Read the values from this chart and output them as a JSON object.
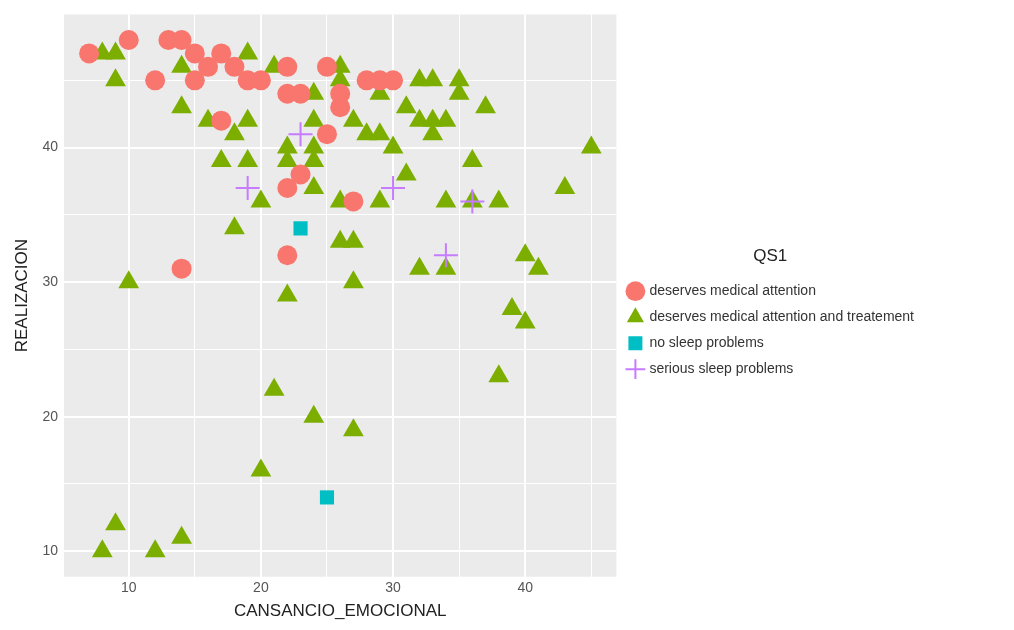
{
  "chart_data": {
    "type": "scatter",
    "xlabel": "CANSANCIO_EMOCIONAL",
    "ylabel": "REALIZACION",
    "legend_title": "QS1",
    "legend": "right",
    "grid": true,
    "xlim": [
      5.1,
      46.9
    ],
    "ylim": [
      8.1,
      49.9
    ],
    "xticks": [
      10,
      {
        "value": 15,
        "label": null
      },
      20,
      {
        "value": 25,
        "label": null
      },
      30,
      {
        "value": 35,
        "label": null
      },
      40,
      {
        "value": 45,
        "label": null
      }
    ],
    "yticks": [
      10,
      {
        "value": 15,
        "label": null
      },
      20,
      {
        "value": 25,
        "label": null
      },
      30,
      {
        "value": 35,
        "label": null
      },
      40,
      {
        "value": 45,
        "label": null
      }
    ],
    "series": [
      {
        "name": "deserves medical attention",
        "color": "#f8766d",
        "marker": "circle",
        "x": [
          7,
          10,
          12,
          13,
          14,
          15,
          15,
          16,
          17,
          18,
          19,
          20,
          17,
          22,
          22,
          23,
          25,
          26,
          26,
          25,
          23,
          22,
          27,
          22,
          14,
          28,
          29,
          30
        ],
        "values": [
          47,
          48,
          45,
          48,
          48,
          47,
          45,
          46,
          47,
          46,
          45,
          45,
          42,
          46,
          44,
          44,
          46,
          44,
          43,
          41,
          38,
          37,
          36,
          32,
          31,
          45,
          45,
          45
        ]
      },
      {
        "name": "deserves medical attention and treatement",
        "color": "#7cae00",
        "marker": "triangle",
        "x": [
          8,
          9,
          9,
          14,
          14,
          19,
          16,
          19,
          18,
          17,
          19,
          20,
          21,
          22,
          24,
          24,
          24,
          22,
          22,
          24,
          24,
          26,
          26,
          26,
          29,
          32,
          33,
          35,
          35,
          31,
          32,
          33,
          34,
          33,
          37,
          27,
          28,
          29,
          30,
          36,
          45,
          31,
          43,
          29,
          34,
          36,
          38,
          18,
          10,
          22,
          21,
          26,
          27,
          27,
          32,
          34,
          40,
          41,
          39,
          40,
          38,
          24,
          27,
          20,
          9,
          8,
          12,
          14
        ],
        "values": [
          47,
          47,
          45,
          46,
          43,
          47,
          42,
          42,
          41,
          39,
          39,
          36,
          46,
          null,
          44,
          42,
          40,
          40,
          39,
          39,
          37,
          46,
          45,
          36,
          44,
          45,
          45,
          45,
          44,
          43,
          42,
          42,
          42,
          41,
          43,
          42,
          41,
          41,
          40,
          39,
          40,
          38,
          37,
          36,
          36,
          36,
          36,
          34,
          30,
          29,
          22,
          33,
          33,
          30,
          31,
          31,
          32,
          31,
          28,
          27,
          23,
          20,
          19,
          16,
          12,
          10,
          10,
          11
        ]
      },
      {
        "name": "no sleep problems",
        "color": "#00bfc4",
        "marker": "square",
        "x": [
          23,
          25
        ],
        "values": [
          34,
          14
        ]
      },
      {
        "name": "serious sleep problems",
        "color": "#c77cff",
        "marker": "cross",
        "x": [
          34,
          36,
          30,
          19,
          23
        ],
        "values": [
          32,
          36,
          37,
          37,
          41
        ]
      }
    ]
  }
}
